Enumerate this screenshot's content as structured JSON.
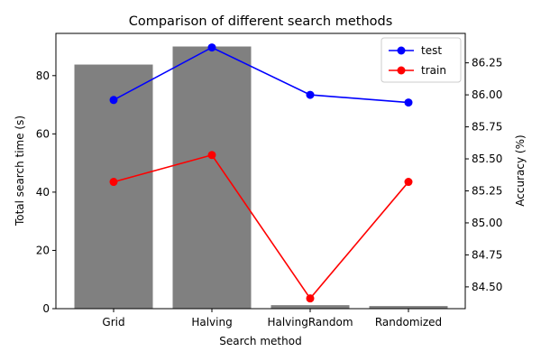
{
  "chart_data": {
    "type": "bar",
    "title": "Comparison of different search methods",
    "xlabel": "Search method",
    "ylabel": "Total search time (s)",
    "y2label": "Accuracy (%)",
    "categories": [
      "Grid",
      "Halving",
      "HalvingRandom",
      "Randomized"
    ],
    "bar_series": {
      "values": [
        83.8,
        90.0,
        1.2,
        0.9
      ],
      "color": "#808080",
      "ylim": [
        0,
        94.5
      ],
      "ticks": [
        0,
        20,
        40,
        60,
        80
      ],
      "tick_labels": [
        "0",
        "20",
        "40",
        "60",
        "80"
      ]
    },
    "line_series": [
      {
        "name": "test",
        "color": "#0000ff",
        "values": [
          85.96,
          86.37,
          86.0,
          85.94
        ]
      },
      {
        "name": "train",
        "color": "#ff0000",
        "values": [
          85.32,
          85.53,
          84.41,
          85.32
        ]
      }
    ],
    "y2lim": [
      84.33,
      86.48
    ],
    "y2_ticks": [
      84.5,
      84.75,
      85.0,
      85.25,
      85.5,
      85.75,
      86.0,
      86.25
    ],
    "y2_tick_labels": [
      "84.50",
      "84.75",
      "85.00",
      "85.25",
      "85.50",
      "85.75",
      "86.00",
      "86.25"
    ],
    "legend_position": "top-right",
    "grid": false
  }
}
